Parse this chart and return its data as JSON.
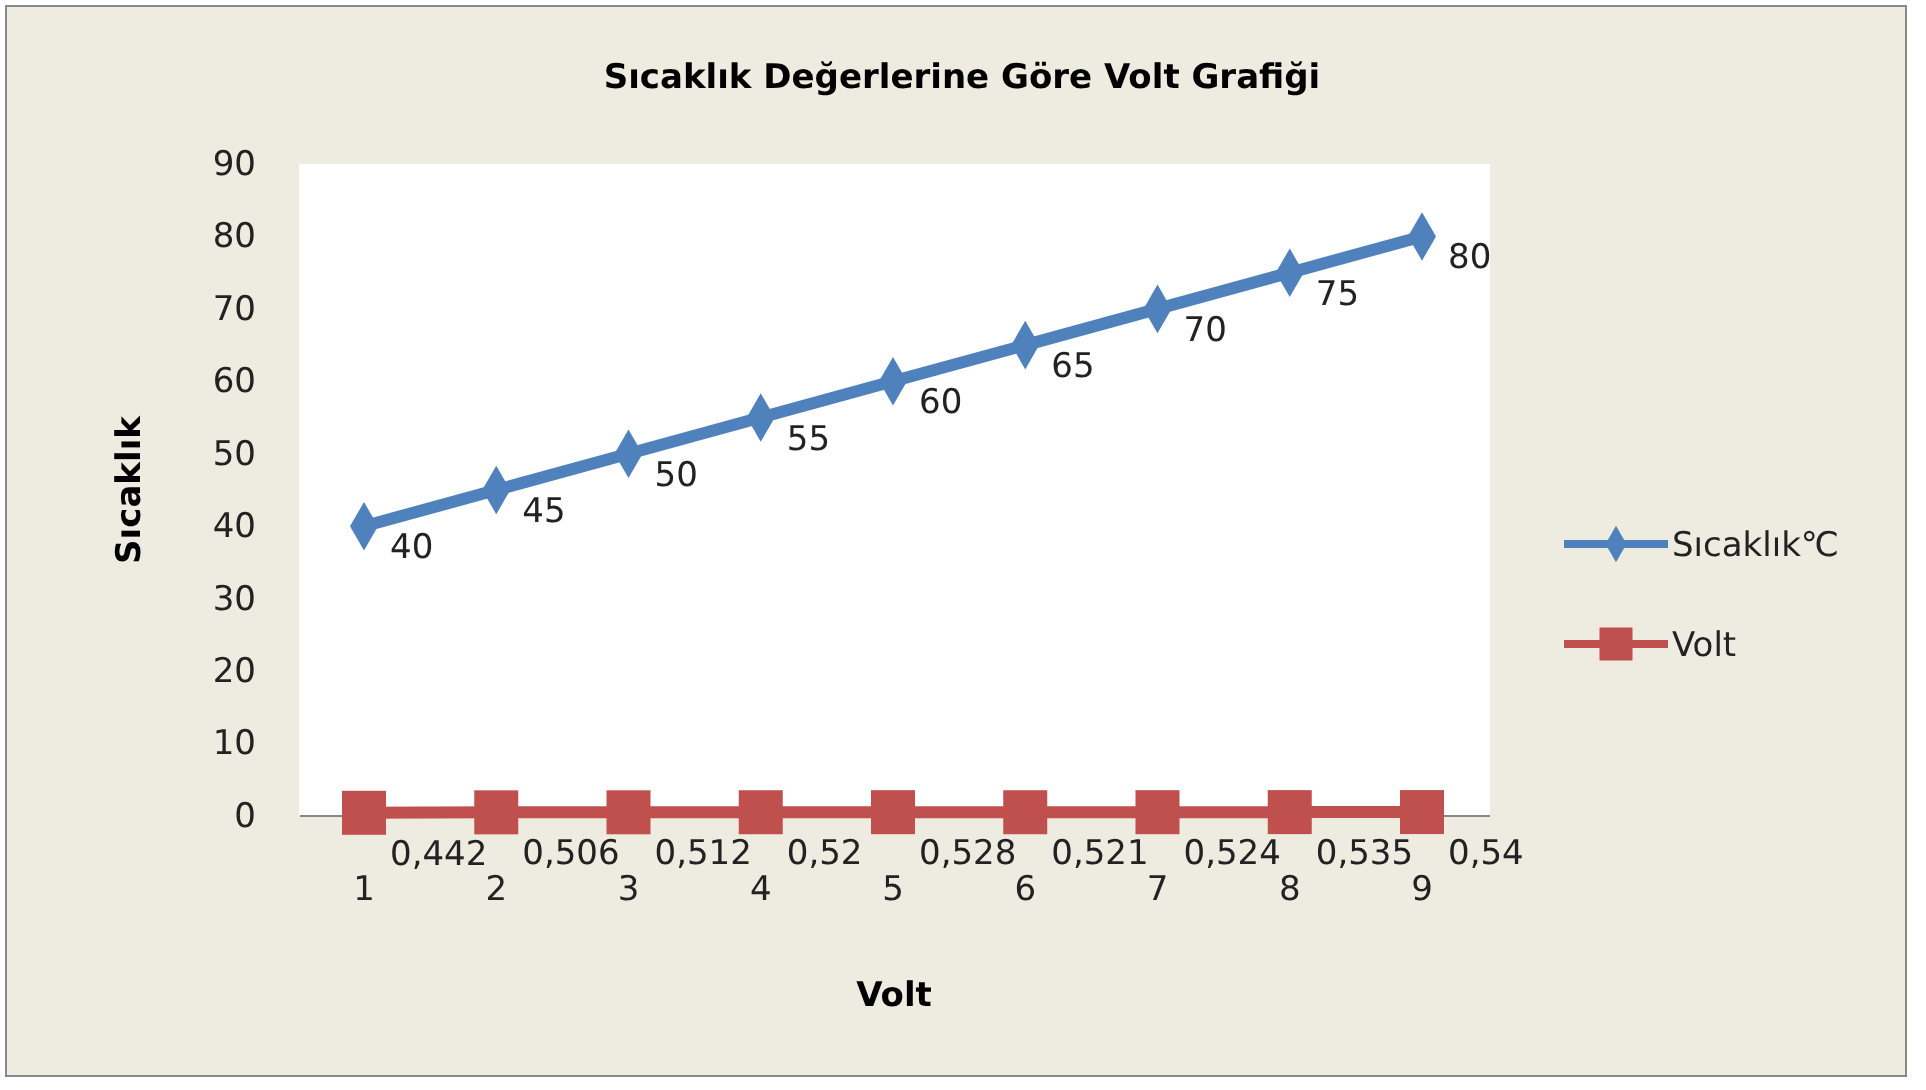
{
  "chart_data": {
    "type": "line",
    "title": "Sıcaklık Değerlerine Göre Volt Grafiği",
    "xlabel": "Volt",
    "ylabel": "Sıcaklık",
    "categories": [
      "1",
      "2",
      "3",
      "4",
      "5",
      "6",
      "7",
      "8",
      "9"
    ],
    "series": [
      {
        "name": "Sıcaklık℃",
        "color": "#4f81bd",
        "marker": "diamond",
        "values": [
          40,
          45,
          50,
          55,
          60,
          65,
          70,
          75,
          80
        ],
        "value_labels": [
          "40",
          "45",
          "50",
          "55",
          "60",
          "65",
          "70",
          "75",
          "80"
        ]
      },
      {
        "name": "Volt",
        "color": "#c0504d",
        "marker": "square",
        "values": [
          0.442,
          0.506,
          0.512,
          0.52,
          0.528,
          0.521,
          0.524,
          0.535,
          0.54
        ],
        "value_labels": [
          "0,442",
          "0,506",
          "0,512",
          "0,52",
          "0,528",
          "0,521",
          "0,524",
          "0,535",
          "0,54"
        ]
      }
    ],
    "ylim": [
      0,
      90
    ],
    "yticks": [
      0,
      10,
      20,
      30,
      40,
      50,
      60,
      70,
      80,
      90
    ],
    "grid": false,
    "legend": "right"
  }
}
